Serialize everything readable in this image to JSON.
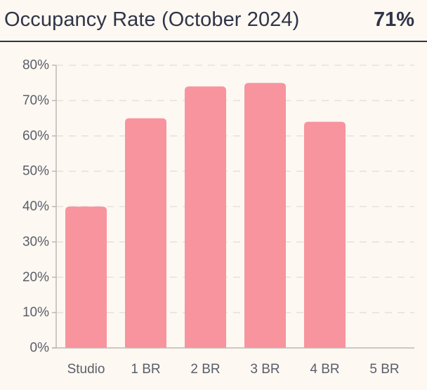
{
  "header": {
    "title": "Occupancy Rate (October 2024)",
    "kpi_value": "71%"
  },
  "colors": {
    "background": "#FDF8F1",
    "bar": "#F7949E",
    "text": "#2F3448",
    "tick_text": "#5A5E6B",
    "grid": "#E6E1DA",
    "axis": "#BDB8B1"
  },
  "chart_data": {
    "type": "bar",
    "title": "Occupancy Rate (October 2024)",
    "xlabel": "",
    "ylabel": "",
    "categories": [
      "Studio",
      "1 BR",
      "2 BR",
      "3 BR",
      "4 BR",
      "5 BR"
    ],
    "values": [
      40,
      65,
      74,
      75,
      64,
      0
    ],
    "y_ticks": [
      "0%",
      "10%",
      "20%",
      "30%",
      "40%",
      "50%",
      "60%",
      "70%",
      "80%"
    ],
    "ylim": [
      0,
      80
    ],
    "grid": true,
    "legend": "none"
  }
}
